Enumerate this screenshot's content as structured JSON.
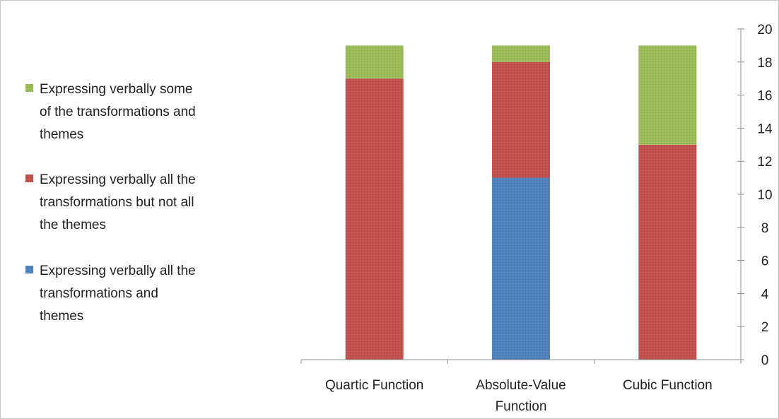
{
  "chart_data": {
    "type": "bar",
    "stacked": true,
    "categories": [
      [
        "Quartic Function"
      ],
      [
        "Absolute-Value",
        "Function"
      ],
      [
        "Cubic Function"
      ]
    ],
    "series": [
      {
        "name": "Expressing verbally all the transformations and themes",
        "legend_lines": [
          "Expressing verbally all the",
          "transformations and",
          "themes"
        ],
        "color": "#4f81bd",
        "values": [
          0,
          11,
          0
        ]
      },
      {
        "name": "Expressing verbally all the transformations but not all the themes",
        "legend_lines": [
          "Expressing verbally all the",
          "transformations but not all",
          "the themes"
        ],
        "color": "#c0504d",
        "values": [
          17,
          7,
          13
        ]
      },
      {
        "name": "Expressing verbally some of the transformations and themes",
        "legend_lines": [
          "Expressing verbally some",
          "of the transformations and",
          "themes"
        ],
        "color": "#9bbb59",
        "values": [
          2,
          1,
          6
        ]
      }
    ],
    "legend_order": [
      2,
      1,
      0
    ],
    "legend_position": "left",
    "y_axis_position": "right",
    "ylim": [
      0,
      20
    ],
    "yticks": [
      0,
      2,
      4,
      6,
      8,
      10,
      12,
      14,
      16,
      18,
      20
    ],
    "grid": false,
    "title": "",
    "xlabel": "",
    "ylabel": ""
  }
}
